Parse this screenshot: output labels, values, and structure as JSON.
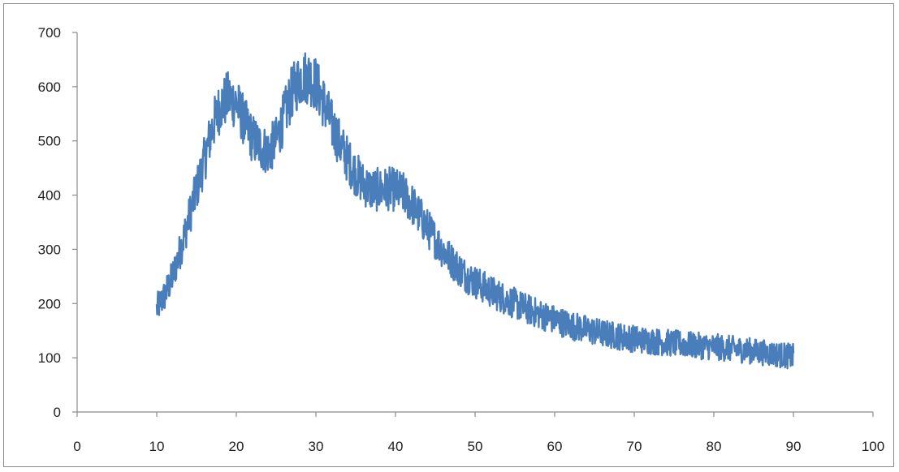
{
  "chart_data": {
    "type": "line",
    "title": "",
    "xlabel": "",
    "ylabel": "",
    "xlim": [
      0,
      100
    ],
    "ylim": [
      0,
      700
    ],
    "x_ticks": [
      0,
      10,
      20,
      30,
      40,
      50,
      60,
      70,
      80,
      90,
      100
    ],
    "y_ticks": [
      0,
      100,
      200,
      300,
      400,
      500,
      600,
      700
    ],
    "grid": false,
    "legend": "none",
    "series": [
      {
        "color": "#4a7ebb",
        "x": [
          10,
          11,
          12,
          13,
          14,
          15,
          16,
          17,
          18,
          19,
          20,
          21,
          22,
          23,
          24,
          25,
          26,
          27,
          28,
          29,
          30,
          31,
          32,
          33,
          34,
          35,
          36,
          37,
          38,
          39,
          40,
          41,
          42,
          43,
          44,
          45,
          46,
          47,
          48,
          49,
          50,
          52,
          54,
          56,
          58,
          60,
          62,
          64,
          66,
          68,
          70,
          72,
          74,
          76,
          78,
          80,
          82,
          84,
          86,
          88,
          90
        ],
        "y": [
          190,
          215,
          250,
          300,
          355,
          410,
          465,
          525,
          565,
          580,
          570,
          535,
          505,
          490,
          480,
          500,
          545,
          590,
          615,
          620,
          605,
          570,
          530,
          495,
          465,
          440,
          420,
          410,
          410,
          412,
          410,
          402,
          385,
          362,
          340,
          318,
          298,
          280,
          264,
          250,
          240,
          222,
          207,
          193,
          181,
          170,
          160,
          152,
          145,
          140,
          135,
          131,
          128,
          125,
          122,
          120,
          117,
          114,
          110,
          106,
          102
        ]
      }
    ]
  }
}
